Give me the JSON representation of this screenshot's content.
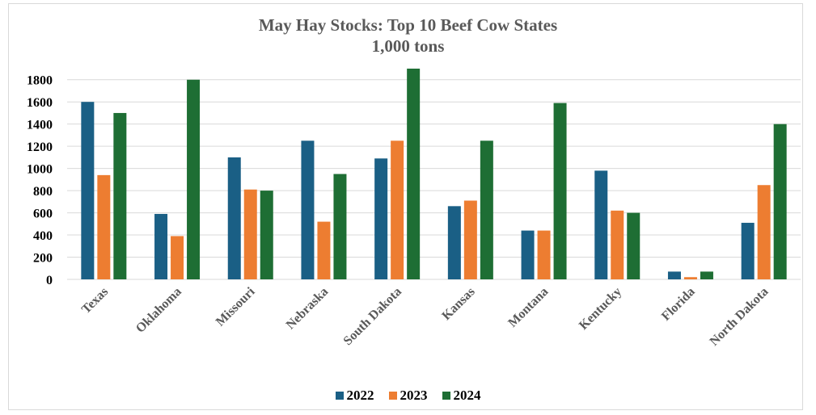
{
  "chart_data": {
    "type": "bar",
    "title": "May Hay Stocks: Top 10 Beef Cow States",
    "subtitle": "1,000 tons",
    "categories": [
      "Texas",
      "Oklahoma",
      "Missouri",
      "Nebraska",
      "South Dakota",
      "Kansas",
      "Montana",
      "Kentucky",
      "Florida",
      "North Dakota"
    ],
    "series": [
      {
        "name": "2022",
        "color": "#1a5f85",
        "values": [
          1600,
          590,
          1100,
          1250,
          1090,
          660,
          440,
          980,
          70,
          510
        ]
      },
      {
        "name": "2023",
        "color": "#ed7d31",
        "values": [
          940,
          390,
          810,
          520,
          1250,
          710,
          440,
          620,
          20,
          850
        ]
      },
      {
        "name": "2024",
        "color": "#1e6e34",
        "values": [
          1500,
          1800,
          800,
          950,
          1900,
          1250,
          1590,
          600,
          70,
          1400
        ]
      }
    ],
    "y_ticks": [
      "0",
      "200",
      "400",
      "600",
      "800",
      "1000",
      "1200",
      "1400",
      "1600",
      "1800"
    ],
    "ylim": [
      0,
      1900
    ],
    "grid": true,
    "gridline_color": "#d9d9d9",
    "legend_position": "bottom"
  }
}
